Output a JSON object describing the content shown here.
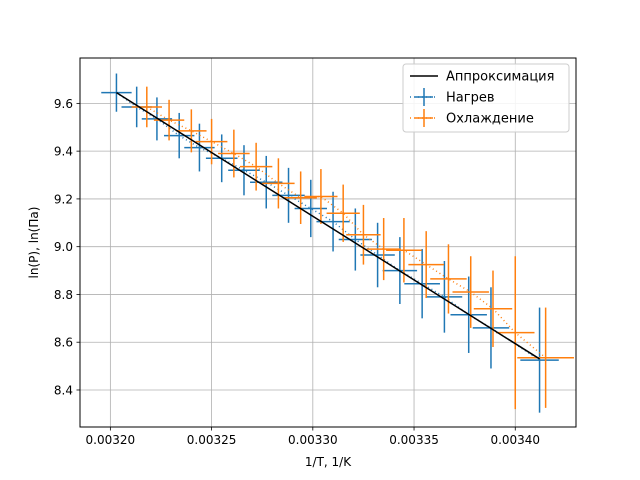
{
  "chart_data": {
    "type": "scatter",
    "xlabel": "1/T, 1/K",
    "ylabel": "ln(P), ln(Па)",
    "xlim": [
      0.003185,
      0.00343
    ],
    "ylim": [
      8.245,
      9.79
    ],
    "xticks": [
      "0.00320",
      "0.00325",
      "0.00330",
      "0.00335",
      "0.00340"
    ],
    "xtick_values": [
      0.0032,
      0.00325,
      0.0033,
      0.00335,
      0.0034
    ],
    "yticks": [
      "8.4",
      "8.6",
      "8.8",
      "9.0",
      "9.2",
      "9.4",
      "9.6"
    ],
    "ytick_values": [
      8.4,
      8.6,
      8.8,
      9.0,
      9.2,
      9.4,
      9.6
    ],
    "grid": true,
    "legend_position": "top-right",
    "fit_line": {
      "name": "Аппроксимация",
      "color": "#000000",
      "x": [
        0.003203,
        0.003412
      ],
      "y": [
        9.645,
        8.53
      ]
    },
    "series": [
      {
        "name": "Нагрев",
        "color": "#1f77b4",
        "x": [
          0.003203,
          0.003213,
          0.003223,
          0.003234,
          0.003244,
          0.003255,
          0.003266,
          0.003277,
          0.003288,
          0.003299,
          0.00331,
          0.003321,
          0.003332,
          0.003343,
          0.003354,
          0.003365,
          0.003377,
          0.003388,
          0.003412
        ],
        "y": [
          9.645,
          9.585,
          9.535,
          9.465,
          9.415,
          9.37,
          9.32,
          9.27,
          9.215,
          9.16,
          9.105,
          9.03,
          8.965,
          8.9,
          8.845,
          8.79,
          8.715,
          8.66,
          8.525
        ],
        "xerr": [
          7.5e-06,
          7.5e-06,
          7.5e-06,
          7.5e-06,
          7.5e-06,
          7.8e-06,
          7.8e-06,
          8e-06,
          8e-06,
          8e-06,
          8.2e-06,
          8.2e-06,
          8.5e-06,
          8.5e-06,
          8.8e-06,
          8.8e-06,
          9e-06,
          9e-06,
          9.5e-06
        ],
        "yerr": [
          0.08,
          0.085,
          0.09,
          0.095,
          0.1,
          0.1,
          0.105,
          0.11,
          0.115,
          0.12,
          0.125,
          0.13,
          0.135,
          0.14,
          0.145,
          0.15,
          0.16,
          0.17,
          0.22
        ]
      },
      {
        "name": "Охлаждение",
        "color": "#ff7f0e",
        "x": [
          0.003218,
          0.003229,
          0.00324,
          0.00325,
          0.003261,
          0.003272,
          0.003283,
          0.003294,
          0.003304,
          0.003315,
          0.003325,
          0.003335,
          0.003345,
          0.003356,
          0.003367,
          0.003378,
          0.003389,
          0.0034,
          0.003415
        ],
        "y": [
          9.585,
          9.53,
          9.485,
          9.44,
          9.39,
          9.335,
          9.265,
          9.205,
          9.21,
          9.14,
          9.05,
          8.99,
          8.985,
          8.925,
          8.865,
          8.81,
          8.74,
          8.64,
          8.535
        ],
        "xerr": [
          7.5e-06,
          7.5e-06,
          7.5e-06,
          7.8e-06,
          7.8e-06,
          8e-06,
          8e-06,
          8e-06,
          8.2e-06,
          8.2e-06,
          8.5e-06,
          8.5e-06,
          8.8e-06,
          8.8e-06,
          9e-06,
          9e-06,
          9.5e-06,
          9.5e-06,
          1.4e-05
        ],
        "yerr": [
          0.085,
          0.085,
          0.09,
          0.095,
          0.1,
          0.1,
          0.105,
          0.11,
          0.115,
          0.12,
          0.125,
          0.13,
          0.135,
          0.14,
          0.145,
          0.15,
          0.16,
          0.32,
          0.21
        ]
      }
    ]
  }
}
